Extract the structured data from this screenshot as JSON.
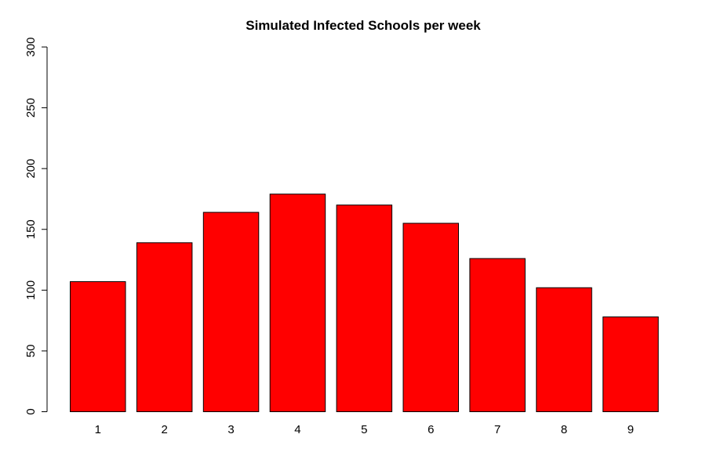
{
  "chart_data": {
    "type": "bar",
    "title": "Simulated Infected Schools per week",
    "xlabel": "",
    "ylabel": "",
    "categories": [
      "1",
      "2",
      "3",
      "4",
      "5",
      "6",
      "7",
      "8",
      "9"
    ],
    "values": [
      107,
      139,
      164,
      179,
      170,
      155,
      126,
      102,
      78
    ],
    "ylim": [
      0,
      300
    ],
    "yticks": [
      0,
      50,
      100,
      150,
      200,
      250,
      300
    ],
    "grid": false,
    "bar_color": "#ff0000",
    "bar_border": "#000000"
  }
}
